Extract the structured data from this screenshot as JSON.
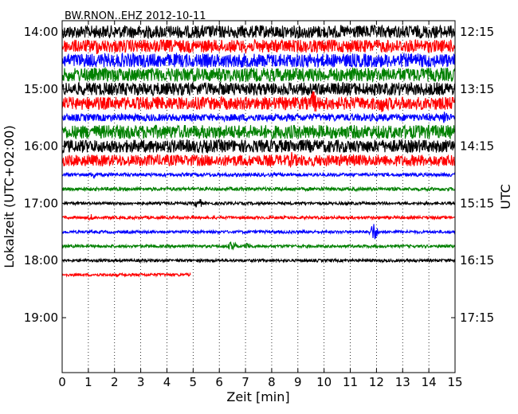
{
  "chart_data": {
    "type": "line",
    "title": "BW.RNON..EHZ 2012-10-11",
    "xlabel": "Zeit  [min]",
    "ylabel_left": "Lokalzeit (UTC+02:00)",
    "ylabel_right": "UTC",
    "xlim": [
      0,
      15
    ],
    "x_ticks": [
      "0",
      "1",
      "2",
      "3",
      "4",
      "5",
      "6",
      "7",
      "8",
      "9",
      "10",
      "11",
      "12",
      "13",
      "14",
      "15"
    ],
    "y_ticks_left": [
      "14:00",
      "15:00",
      "16:00",
      "17:00",
      "18:00",
      "19:00"
    ],
    "y_ticks_right": [
      "12:15",
      "13:15",
      "14:15",
      "15:15",
      "16:15",
      "17:15"
    ],
    "grid": "vertical dotted",
    "trace_colors": [
      "#000000",
      "#ff0000",
      "#0000ff",
      "#008000"
    ],
    "traces": [
      {
        "start": "14:00",
        "amplitude": 0.45,
        "end_min": 15,
        "color": "#000000"
      },
      {
        "start": "14:15",
        "amplitude": 0.45,
        "end_min": 15,
        "color": "#ff0000"
      },
      {
        "start": "14:30",
        "amplitude": 0.48,
        "end_min": 15,
        "color": "#0000ff"
      },
      {
        "start": "14:45",
        "amplitude": 0.48,
        "end_min": 15,
        "color": "#008000"
      },
      {
        "start": "15:00",
        "amplitude": 0.45,
        "end_min": 15,
        "color": "#000000"
      },
      {
        "start": "15:15",
        "amplitude": 0.45,
        "end_min": 15,
        "color": "#ff0000"
      },
      {
        "start": "15:30",
        "amplitude": 0.25,
        "end_min": 15,
        "color": "#0000ff"
      },
      {
        "start": "15:45",
        "amplitude": 0.48,
        "end_min": 15,
        "color": "#008000"
      },
      {
        "start": "16:00",
        "amplitude": 0.45,
        "end_min": 15,
        "color": "#000000"
      },
      {
        "start": "16:15",
        "amplitude": 0.4,
        "end_min": 15,
        "color": "#ff0000"
      },
      {
        "start": "16:30",
        "amplitude": 0.12,
        "end_min": 15,
        "color": "#0000ff"
      },
      {
        "start": "16:45",
        "amplitude": 0.12,
        "end_min": 15,
        "color": "#008000"
      },
      {
        "start": "17:00",
        "amplitude": 0.1,
        "end_min": 15,
        "color": "#000000"
      },
      {
        "start": "17:15",
        "amplitude": 0.1,
        "end_min": 15,
        "color": "#ff0000"
      },
      {
        "start": "17:30",
        "amplitude": 0.1,
        "end_min": 15,
        "color": "#0000ff"
      },
      {
        "start": "17:45",
        "amplitude": 0.1,
        "end_min": 15,
        "color": "#008000"
      },
      {
        "start": "18:00",
        "amplitude": 0.1,
        "end_min": 15,
        "color": "#000000"
      },
      {
        "start": "18:15",
        "amplitude": 0.1,
        "end_min": 4.9,
        "color": "#ff0000"
      }
    ],
    "events": [
      {
        "start": "14:15",
        "x": 1.3,
        "amplitude": 0.7
      },
      {
        "start": "15:15",
        "x": 9.6,
        "amplitude": 1.0
      },
      {
        "start": "15:15",
        "x": 12.2,
        "amplitude": 0.8
      },
      {
        "start": "15:30",
        "x": 14.6,
        "amplitude": 0.6
      },
      {
        "start": "16:15",
        "x": 8.8,
        "amplitude": 0.7
      },
      {
        "start": "16:30",
        "x": 1.2,
        "amplitude": 0.3
      },
      {
        "start": "17:00",
        "x": 5.2,
        "amplitude": 0.45
      },
      {
        "start": "17:15",
        "x": 1.1,
        "amplitude": 0.25
      },
      {
        "start": "17:30",
        "x": 11.9,
        "amplitude": 0.7
      },
      {
        "start": "17:45",
        "x": 6.5,
        "amplitude": 0.45
      },
      {
        "start": "17:45",
        "x": 7.1,
        "amplitude": 0.3
      }
    ]
  }
}
